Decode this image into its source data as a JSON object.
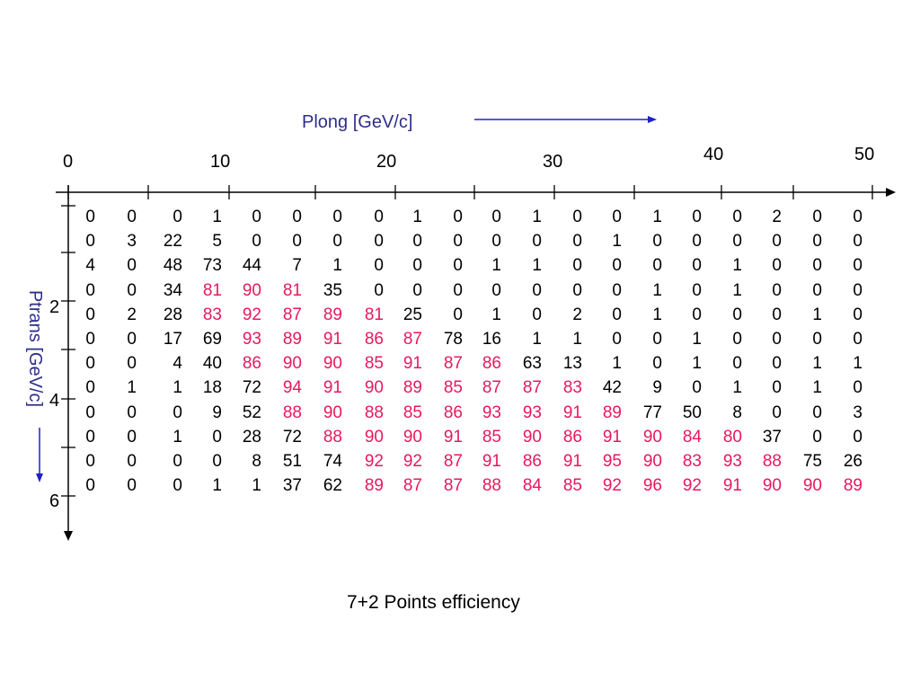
{
  "chart_data": {
    "type": "table",
    "title": "7+2 Points efficiency",
    "xlabel": "Plong [GeV/c]",
    "ylabel": "Ptrans [GeV/c]",
    "x_ticks": [
      "0",
      "10",
      "20",
      "30",
      "40",
      "50"
    ],
    "y_ticks": [
      "2",
      "4",
      "6"
    ],
    "highlight_color": "#e6195c",
    "normal_color": "#000000",
    "label_color": "#2e2e8c",
    "arrow_color": "#2020c8",
    "rows": [
      [
        0,
        0,
        0,
        1,
        0,
        0,
        0,
        0,
        1,
        0,
        0,
        1,
        0,
        0,
        1,
        0,
        0,
        2,
        0,
        0
      ],
      [
        0,
        3,
        22,
        5,
        0,
        0,
        0,
        0,
        0,
        0,
        0,
        0,
        0,
        1,
        0,
        0,
        0,
        0,
        0,
        0
      ],
      [
        4,
        0,
        48,
        73,
        44,
        7,
        1,
        0,
        0,
        0,
        1,
        1,
        0,
        0,
        0,
        0,
        1,
        0,
        0,
        0
      ],
      [
        0,
        0,
        34,
        81,
        90,
        81,
        35,
        0,
        0,
        0,
        0,
        0,
        0,
        0,
        1,
        0,
        1,
        0,
        0,
        0
      ],
      [
        0,
        2,
        28,
        83,
        92,
        87,
        89,
        81,
        25,
        0,
        1,
        0,
        2,
        0,
        1,
        0,
        0,
        0,
        1,
        0
      ],
      [
        0,
        0,
        17,
        69,
        93,
        89,
        91,
        86,
        87,
        78,
        16,
        1,
        1,
        0,
        0,
        1,
        0,
        0,
        0,
        0
      ],
      [
        0,
        0,
        4,
        40,
        86,
        90,
        90,
        85,
        91,
        87,
        86,
        63,
        13,
        1,
        0,
        1,
        0,
        0,
        1,
        1
      ],
      [
        0,
        1,
        1,
        18,
        72,
        94,
        91,
        90,
        89,
        85,
        87,
        87,
        83,
        42,
        9,
        0,
        1,
        0,
        1,
        0
      ],
      [
        0,
        0,
        0,
        9,
        52,
        88,
        90,
        88,
        85,
        86,
        93,
        93,
        91,
        89,
        77,
        50,
        8,
        0,
        0,
        3
      ],
      [
        0,
        0,
        1,
        0,
        28,
        72,
        88,
        90,
        90,
        91,
        85,
        90,
        86,
        91,
        90,
        84,
        80,
        37,
        0,
        0
      ],
      [
        0,
        0,
        0,
        0,
        8,
        51,
        74,
        92,
        92,
        87,
        91,
        86,
        91,
        95,
        90,
        83,
        93,
        88,
        75,
        26
      ],
      [
        0,
        0,
        0,
        1,
        1,
        37,
        62,
        89,
        87,
        87,
        88,
        84,
        85,
        92,
        96,
        92,
        91,
        90,
        90,
        89
      ]
    ],
    "highlighted": [
      [],
      [],
      [],
      [
        3,
        4,
        5
      ],
      [
        3,
        4,
        5,
        6,
        7
      ],
      [
        4,
        5,
        6,
        7,
        8
      ],
      [
        4,
        5,
        6,
        7,
        8,
        9,
        10
      ],
      [
        5,
        6,
        7,
        8,
        9,
        10,
        11,
        12
      ],
      [
        5,
        6,
        7,
        8,
        9,
        10,
        11,
        12,
        13
      ],
      [
        6,
        7,
        8,
        9,
        10,
        11,
        12,
        13,
        14,
        15,
        16
      ],
      [
        7,
        8,
        9,
        10,
        11,
        12,
        13,
        14,
        15,
        16,
        17
      ],
      [
        7,
        8,
        9,
        10,
        11,
        12,
        13,
        14,
        15,
        16,
        17,
        18,
        19
      ]
    ]
  }
}
